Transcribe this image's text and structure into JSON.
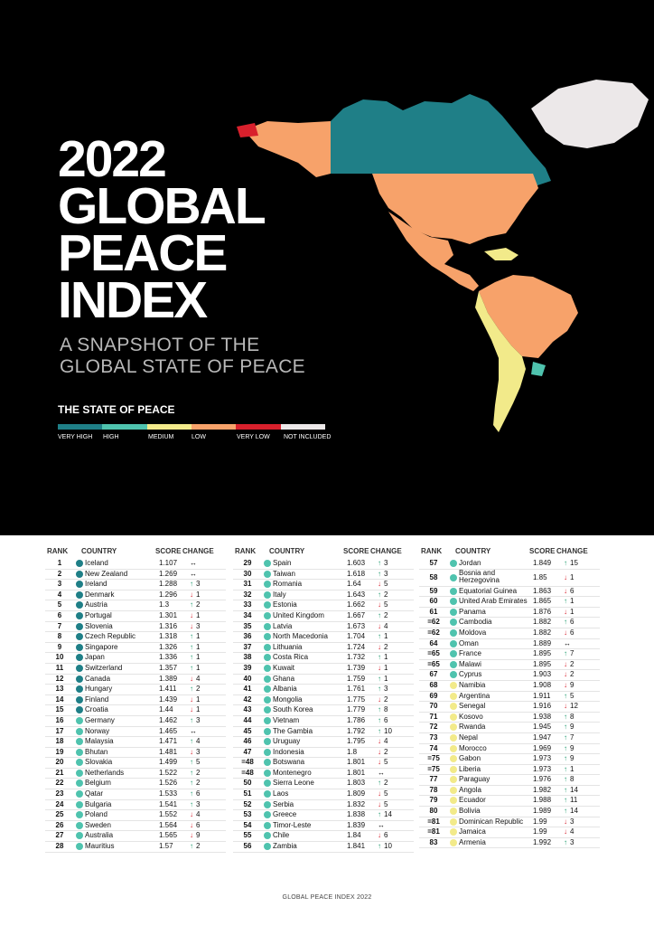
{
  "header": {
    "title_lines": [
      "2022",
      "GLOBAL",
      "PEACE",
      "INDEX"
    ],
    "subtitle_lines": [
      "A SNAPSHOT OF THE",
      "GLOBAL STATE OF PEACE"
    ]
  },
  "legend": {
    "title": "THE STATE OF PEACE",
    "items": [
      {
        "label": "VERY HIGH",
        "color": "#1f7f87"
      },
      {
        "label": "HIGH",
        "color": "#4fc3ae"
      },
      {
        "label": "MEDIUM",
        "color": "#f2ea8a"
      },
      {
        "label": "LOW",
        "color": "#f7a26a"
      },
      {
        "label": "VERY LOW",
        "color": "#d8202c"
      },
      {
        "label": "NOT INCLUDED",
        "color": "#ece8e9"
      }
    ]
  },
  "table": {
    "headers": {
      "rank": "RANK",
      "country": "COUNTRY",
      "score": "SCORE",
      "change": "CHANGE"
    },
    "columns": [
      [
        {
          "rank": "1",
          "country": "Iceland",
          "score": "1.107",
          "dir": "same",
          "change": "",
          "level": "very_high"
        },
        {
          "rank": "2",
          "country": "New Zealand",
          "score": "1.269",
          "dir": "same",
          "change": "",
          "level": "very_high"
        },
        {
          "rank": "3",
          "country": "Ireland",
          "score": "1.288",
          "dir": "up",
          "change": "3",
          "level": "very_high"
        },
        {
          "rank": "4",
          "country": "Denmark",
          "score": "1.296",
          "dir": "down",
          "change": "1",
          "level": "very_high"
        },
        {
          "rank": "5",
          "country": "Austria",
          "score": "1.3",
          "dir": "up",
          "change": "2",
          "level": "very_high"
        },
        {
          "rank": "6",
          "country": "Portugal",
          "score": "1.301",
          "dir": "down",
          "change": "1",
          "level": "very_high"
        },
        {
          "rank": "7",
          "country": "Slovenia",
          "score": "1.316",
          "dir": "down",
          "change": "3",
          "level": "very_high"
        },
        {
          "rank": "8",
          "country": "Czech Republic",
          "score": "1.318",
          "dir": "up",
          "change": "1",
          "level": "very_high"
        },
        {
          "rank": "9",
          "country": "Singapore",
          "score": "1.326",
          "dir": "up",
          "change": "1",
          "level": "very_high"
        },
        {
          "rank": "10",
          "country": "Japan",
          "score": "1.336",
          "dir": "up",
          "change": "1",
          "level": "very_high"
        },
        {
          "rank": "11",
          "country": "Switzerland",
          "score": "1.357",
          "dir": "up",
          "change": "1",
          "level": "very_high"
        },
        {
          "rank": "12",
          "country": "Canada",
          "score": "1.389",
          "dir": "down",
          "change": "4",
          "level": "very_high"
        },
        {
          "rank": "13",
          "country": "Hungary",
          "score": "1.411",
          "dir": "up",
          "change": "2",
          "level": "very_high"
        },
        {
          "rank": "14",
          "country": "Finland",
          "score": "1.439",
          "dir": "down",
          "change": "1",
          "level": "very_high"
        },
        {
          "rank": "15",
          "country": "Croatia",
          "score": "1.44",
          "dir": "down",
          "change": "1",
          "level": "very_high"
        },
        {
          "rank": "16",
          "country": "Germany",
          "score": "1.462",
          "dir": "up",
          "change": "3",
          "level": "high"
        },
        {
          "rank": "17",
          "country": "Norway",
          "score": "1.465",
          "dir": "same",
          "change": "",
          "level": "high"
        },
        {
          "rank": "18",
          "country": "Malaysia",
          "score": "1.471",
          "dir": "up",
          "change": "4",
          "level": "high"
        },
        {
          "rank": "19",
          "country": "Bhutan",
          "score": "1.481",
          "dir": "down",
          "change": "3",
          "level": "high"
        },
        {
          "rank": "20",
          "country": "Slovakia",
          "score": "1.499",
          "dir": "up",
          "change": "5",
          "level": "high"
        },
        {
          "rank": "21",
          "country": "Netherlands",
          "score": "1.522",
          "dir": "up",
          "change": "2",
          "level": "high"
        },
        {
          "rank": "22",
          "country": "Belgium",
          "score": "1.526",
          "dir": "up",
          "change": "2",
          "level": "high"
        },
        {
          "rank": "23",
          "country": "Qatar",
          "score": "1.533",
          "dir": "up",
          "change": "6",
          "level": "high"
        },
        {
          "rank": "24",
          "country": "Bulgaria",
          "score": "1.541",
          "dir": "up",
          "change": "3",
          "level": "high"
        },
        {
          "rank": "25",
          "country": "Poland",
          "score": "1.552",
          "dir": "down",
          "change": "4",
          "level": "high"
        },
        {
          "rank": "26",
          "country": "Sweden",
          "score": "1.564",
          "dir": "down",
          "change": "6",
          "level": "high"
        },
        {
          "rank": "27",
          "country": "Australia",
          "score": "1.565",
          "dir": "down",
          "change": "9",
          "level": "high"
        },
        {
          "rank": "28",
          "country": "Mauritius",
          "score": "1.57",
          "dir": "up",
          "change": "2",
          "level": "high"
        }
      ],
      [
        {
          "rank": "29",
          "country": "Spain",
          "score": "1.603",
          "dir": "up",
          "change": "3",
          "level": "high"
        },
        {
          "rank": "30",
          "country": "Taiwan",
          "score": "1.618",
          "dir": "up",
          "change": "3",
          "level": "high"
        },
        {
          "rank": "31",
          "country": "Romania",
          "score": "1.64",
          "dir": "down",
          "change": "5",
          "level": "high"
        },
        {
          "rank": "32",
          "country": "Italy",
          "score": "1.643",
          "dir": "up",
          "change": "2",
          "level": "high"
        },
        {
          "rank": "33",
          "country": "Estonia",
          "score": "1.662",
          "dir": "down",
          "change": "5",
          "level": "high"
        },
        {
          "rank": "34",
          "country": "United Kingdom",
          "score": "1.667",
          "dir": "up",
          "change": "2",
          "level": "high"
        },
        {
          "rank": "35",
          "country": "Latvia",
          "score": "1.673",
          "dir": "down",
          "change": "4",
          "level": "high"
        },
        {
          "rank": "36",
          "country": "North Macedonia",
          "score": "1.704",
          "dir": "up",
          "change": "1",
          "level": "high"
        },
        {
          "rank": "37",
          "country": "Lithuania",
          "score": "1.724",
          "dir": "down",
          "change": "2",
          "level": "high"
        },
        {
          "rank": "38",
          "country": "Costa Rica",
          "score": "1.732",
          "dir": "up",
          "change": "1",
          "level": "high"
        },
        {
          "rank": "39",
          "country": "Kuwait",
          "score": "1.739",
          "dir": "down",
          "change": "1",
          "level": "high"
        },
        {
          "rank": "40",
          "country": "Ghana",
          "score": "1.759",
          "dir": "up",
          "change": "1",
          "level": "high"
        },
        {
          "rank": "41",
          "country": "Albania",
          "score": "1.761",
          "dir": "up",
          "change": "3",
          "level": "high"
        },
        {
          "rank": "42",
          "country": "Mongolia",
          "score": "1.775",
          "dir": "down",
          "change": "2",
          "level": "high"
        },
        {
          "rank": "43",
          "country": "South Korea",
          "score": "1.779",
          "dir": "up",
          "change": "8",
          "level": "high"
        },
        {
          "rank": "44",
          "country": "Vietnam",
          "score": "1.786",
          "dir": "up",
          "change": "6",
          "level": "high"
        },
        {
          "rank": "45",
          "country": "The Gambia",
          "score": "1.792",
          "dir": "up",
          "change": "10",
          "level": "high"
        },
        {
          "rank": "46",
          "country": "Uruguay",
          "score": "1.795",
          "dir": "down",
          "change": "4",
          "level": "high"
        },
        {
          "rank": "47",
          "country": "Indonesia",
          "score": "1.8",
          "dir": "down",
          "change": "2",
          "level": "high"
        },
        {
          "rank": "=48",
          "country": "Botswana",
          "score": "1.801",
          "dir": "down",
          "change": "5",
          "level": "high"
        },
        {
          "rank": "=48",
          "country": "Montenegro",
          "score": "1.801",
          "dir": "same",
          "change": "",
          "level": "high"
        },
        {
          "rank": "50",
          "country": "Sierra Leone",
          "score": "1.803",
          "dir": "up",
          "change": "2",
          "level": "high"
        },
        {
          "rank": "51",
          "country": "Laos",
          "score": "1.809",
          "dir": "down",
          "change": "5",
          "level": "high"
        },
        {
          "rank": "52",
          "country": "Serbia",
          "score": "1.832",
          "dir": "down",
          "change": "5",
          "level": "high"
        },
        {
          "rank": "53",
          "country": "Greece",
          "score": "1.838",
          "dir": "up",
          "change": "14",
          "level": "high"
        },
        {
          "rank": "54",
          "country": "Timor-Leste",
          "score": "1.839",
          "dir": "same",
          "change": "",
          "level": "high"
        },
        {
          "rank": "55",
          "country": "Chile",
          "score": "1.84",
          "dir": "down",
          "change": "6",
          "level": "high"
        },
        {
          "rank": "56",
          "country": "Zambia",
          "score": "1.841",
          "dir": "up",
          "change": "10",
          "level": "high"
        }
      ],
      [
        {
          "rank": "57",
          "country": "Jordan",
          "score": "1.849",
          "dir": "up",
          "change": "15",
          "level": "high"
        },
        {
          "rank": "58",
          "country": "Bosnia and Herzegovina",
          "score": "1.85",
          "dir": "down",
          "change": "1",
          "level": "high"
        },
        {
          "rank": "59",
          "country": "Equatorial Guinea",
          "score": "1.863",
          "dir": "down",
          "change": "6",
          "level": "high"
        },
        {
          "rank": "60",
          "country": "United Arab Emirates",
          "score": "1.865",
          "dir": "up",
          "change": "1",
          "level": "high"
        },
        {
          "rank": "61",
          "country": "Panama",
          "score": "1.876",
          "dir": "down",
          "change": "1",
          "level": "high"
        },
        {
          "rank": "=62",
          "country": "Cambodia",
          "score": "1.882",
          "dir": "up",
          "change": "6",
          "level": "high"
        },
        {
          "rank": "=62",
          "country": "Moldova",
          "score": "1.882",
          "dir": "down",
          "change": "6",
          "level": "high"
        },
        {
          "rank": "64",
          "country": "Oman",
          "score": "1.889",
          "dir": "same",
          "change": "",
          "level": "high"
        },
        {
          "rank": "=65",
          "country": "France",
          "score": "1.895",
          "dir": "up",
          "change": "7",
          "level": "high"
        },
        {
          "rank": "=65",
          "country": "Malawi",
          "score": "1.895",
          "dir": "down",
          "change": "2",
          "level": "high"
        },
        {
          "rank": "67",
          "country": "Cyprus",
          "score": "1.903",
          "dir": "down",
          "change": "2",
          "level": "high"
        },
        {
          "rank": "68",
          "country": "Namibia",
          "score": "1.908",
          "dir": "down",
          "change": "9",
          "level": "medium"
        },
        {
          "rank": "69",
          "country": "Argentina",
          "score": "1.911",
          "dir": "up",
          "change": "5",
          "level": "medium"
        },
        {
          "rank": "70",
          "country": "Senegal",
          "score": "1.916",
          "dir": "down",
          "change": "12",
          "level": "medium"
        },
        {
          "rank": "71",
          "country": "Kosovo",
          "score": "1.938",
          "dir": "up",
          "change": "8",
          "level": "medium"
        },
        {
          "rank": "72",
          "country": "Rwanda",
          "score": "1.945",
          "dir": "up",
          "change": "9",
          "level": "medium"
        },
        {
          "rank": "73",
          "country": "Nepal",
          "score": "1.947",
          "dir": "up",
          "change": "7",
          "level": "medium"
        },
        {
          "rank": "74",
          "country": "Morocco",
          "score": "1.969",
          "dir": "up",
          "change": "9",
          "level": "medium"
        },
        {
          "rank": "=75",
          "country": "Gabon",
          "score": "1.973",
          "dir": "up",
          "change": "9",
          "level": "medium"
        },
        {
          "rank": "=75",
          "country": "Liberia",
          "score": "1.973",
          "dir": "up",
          "change": "1",
          "level": "medium"
        },
        {
          "rank": "77",
          "country": "Paraguay",
          "score": "1.976",
          "dir": "up",
          "change": "8",
          "level": "medium"
        },
        {
          "rank": "78",
          "country": "Angola",
          "score": "1.982",
          "dir": "up",
          "change": "14",
          "level": "medium"
        },
        {
          "rank": "79",
          "country": "Ecuador",
          "score": "1.988",
          "dir": "up",
          "change": "11",
          "level": "medium"
        },
        {
          "rank": "80",
          "country": "Bolivia",
          "score": "1.989",
          "dir": "up",
          "change": "14",
          "level": "medium"
        },
        {
          "rank": "=81",
          "country": "Dominican Republic",
          "score": "1.99",
          "dir": "down",
          "change": "3",
          "level": "medium"
        },
        {
          "rank": "=81",
          "country": "Jamaica",
          "score": "1.99",
          "dir": "down",
          "change": "4",
          "level": "medium"
        },
        {
          "rank": "83",
          "country": "Armenia",
          "score": "1.992",
          "dir": "up",
          "change": "3",
          "level": "medium"
        }
      ]
    ]
  },
  "colors": {
    "very_high": "#1f7f87",
    "high": "#4fc3ae",
    "medium": "#f2ea8a",
    "up": "#1e9a6e",
    "down": "#d8202c",
    "same": "#111111"
  },
  "footer": {
    "text": "GLOBAL PEACE INDEX 2022"
  }
}
